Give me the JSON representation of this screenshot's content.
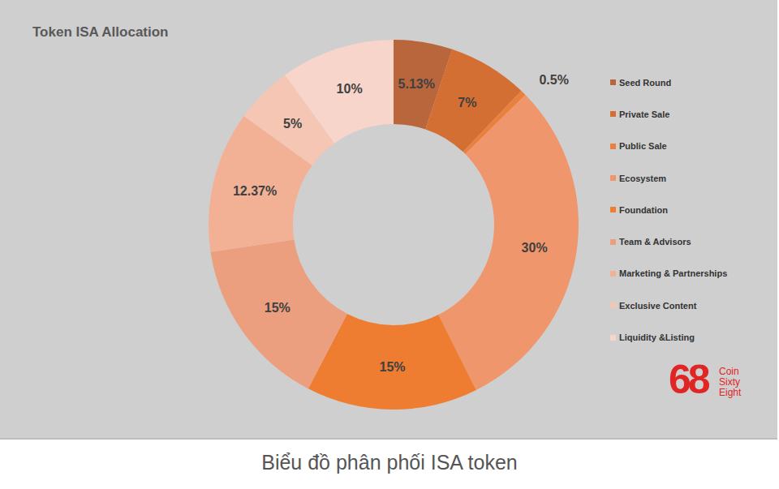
{
  "chart_data": {
    "type": "pie",
    "title": "Token ISA Allocation",
    "categories": [
      "Seed Round",
      "Private Sale",
      "Public Sale",
      "Ecosystem",
      "Foundation",
      "Team & Advisors",
      "Marketing & Partnerships",
      "Exclusive Content",
      "Liquidity &Listing"
    ],
    "values": [
      5.13,
      7,
      0.5,
      30,
      15,
      15,
      12.37,
      5,
      10
    ],
    "value_labels": [
      "5.13%",
      "7%",
      "0.5%",
      "30%",
      "15%",
      "15%",
      "12.37%",
      "5%",
      "10%"
    ],
    "colors": [
      "#b9663d",
      "#d46f34",
      "#e9803e",
      "#f0966c",
      "#ee7d31",
      "#eb9f7e",
      "#f2b195",
      "#f5c6b3",
      "#f8d5ca"
    ],
    "data_labels": true,
    "legend": "right"
  },
  "caption": "Biểu đồ phân phối ISA token",
  "watermark": {
    "logo": "68",
    "text": [
      "Coin",
      "Sixty",
      "Eight"
    ]
  }
}
